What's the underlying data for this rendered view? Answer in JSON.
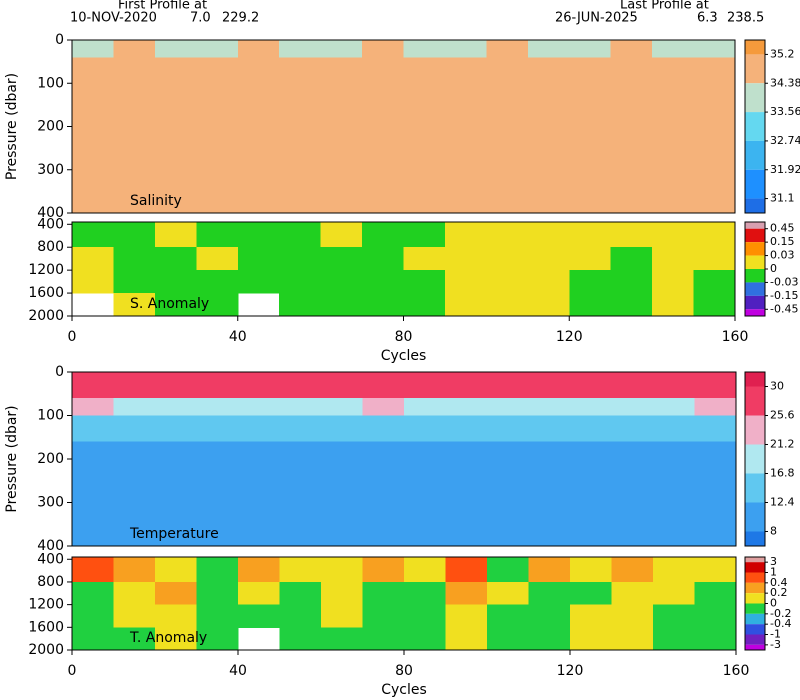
{
  "header": {
    "first_label": "First Profile at",
    "first_date": "10-NOV-2020",
    "first_lat": {
      "value": 7,
      "label": "7.0"
    },
    "first_lon": 229.2,
    "last_label": "Last Profile at",
    "last_date": "26-JUN-2025",
    "last_lat": 6.3,
    "last_lon": 238.5
  },
  "chart_data": [
    {
      "type": "heatmap",
      "label": "Salinity",
      "ylabel": "Pressure (dbar)",
      "xlim": [
        0,
        160
      ],
      "ylim": [
        0,
        400
      ],
      "y_inverted": true,
      "yticks": [
        0,
        100,
        200,
        300,
        400
      ],
      "x_edges": [
        0,
        10,
        20,
        30,
        40,
        50,
        60,
        70,
        80,
        90,
        100,
        110,
        120,
        130,
        140,
        150,
        160
      ],
      "y_edges": [
        0,
        40,
        80,
        150,
        250,
        400
      ],
      "z": [
        [
          33.9,
          34.5,
          34.0,
          33.9,
          34.6,
          34.0,
          33.9,
          34.5,
          33.9,
          34.0,
          34.6,
          33.9,
          34.0,
          34.5,
          33.9,
          34.0
        ],
        [
          34.5,
          34.6,
          34.5,
          34.6,
          34.5,
          34.6,
          34.6,
          34.5,
          34.6,
          34.5,
          34.6,
          34.5,
          34.6,
          34.5,
          34.6,
          34.5
        ],
        [
          34.75,
          34.76,
          34.74,
          34.75,
          34.76,
          34.75,
          34.74,
          34.75,
          34.76,
          34.75,
          34.74,
          34.75,
          34.76,
          34.75,
          34.74,
          34.75
        ],
        [
          34.72,
          34.72,
          34.71,
          34.72,
          34.73,
          34.72,
          34.71,
          34.72,
          34.72,
          34.73,
          34.72,
          34.71,
          34.72,
          34.72,
          34.71,
          34.72
        ],
        [
          34.7,
          34.7,
          34.69,
          34.7,
          34.7,
          34.71,
          34.7,
          34.7,
          34.69,
          34.7,
          34.7,
          34.7,
          34.71,
          34.7,
          34.69,
          34.7
        ]
      ],
      "colorbar": {
        "ticks": [
          35.2,
          34.38,
          33.56,
          32.74,
          31.92,
          31.1
        ],
        "colors": [
          "#f59a3c",
          "#f5b27a",
          "#bfe0cc",
          "#64d8f0",
          "#3cb4f0",
          "#1e90ff",
          "#1e6ee6"
        ]
      }
    },
    {
      "type": "heatmap",
      "label": "S. Anomaly",
      "xlabel": "Cycles",
      "xlim": [
        0,
        160
      ],
      "xticks": [
        0,
        40,
        80,
        120,
        160
      ],
      "ylim": [
        360,
        2000
      ],
      "y_inverted": true,
      "yticks": [
        400,
        800,
        1200,
        1600,
        2000
      ],
      "x_edges": [
        0,
        10,
        20,
        30,
        40,
        50,
        60,
        70,
        80,
        90,
        100,
        110,
        120,
        130,
        140,
        150,
        160
      ],
      "y_edges": [
        360,
        800,
        1200,
        1600,
        2000
      ],
      "z": [
        [
          -0.01,
          -0.01,
          0.01,
          -0.01,
          -0.01,
          -0.01,
          0.01,
          -0.01,
          -0.01,
          0.02,
          0.02,
          0.02,
          0.01,
          0.02,
          0.01,
          0.01
        ],
        [
          0.01,
          -0.01,
          -0.01,
          0.01,
          -0.01,
          -0.01,
          -0.01,
          -0.01,
          0.01,
          0.01,
          0.01,
          0.01,
          0.01,
          -0.01,
          0.01,
          0.01
        ],
        [
          0.01,
          -0.01,
          -0.01,
          -0.01,
          -0.01,
          -0.01,
          -0.01,
          -0.01,
          -0.01,
          0.01,
          0.01,
          0.01,
          -0.01,
          -0.01,
          0.01,
          -0.01
        ],
        [
          null,
          0.01,
          -0.01,
          -0.01,
          null,
          -0.01,
          -0.01,
          -0.01,
          -0.01,
          0.01,
          0.01,
          0.01,
          -0.01,
          -0.01,
          0.01,
          -0.01
        ]
      ],
      "colorbar": {
        "ticks": [
          0.45,
          0.15,
          0.03,
          0,
          -0.03,
          -0.15,
          -0.45
        ],
        "colors": [
          "#d8a0b0",
          "#e01010",
          "#ff9000",
          "#f0e020",
          "#20d020",
          "#3070e0",
          "#5020c0",
          "#c000e0"
        ]
      }
    },
    {
      "type": "heatmap",
      "label": "Temperature",
      "ylabel": "Pressure (dbar)",
      "xlim": [
        0,
        160
      ],
      "ylim": [
        0,
        400
      ],
      "y_inverted": true,
      "yticks": [
        0,
        100,
        200,
        300,
        400
      ],
      "x_edges": [
        0,
        10,
        20,
        30,
        40,
        50,
        60,
        70,
        80,
        90,
        100,
        110,
        120,
        130,
        140,
        150,
        160
      ],
      "y_edges": [
        0,
        60,
        100,
        160,
        280,
        400
      ],
      "z": [
        [
          27,
          27,
          27,
          27,
          27,
          27,
          27,
          27,
          27,
          27,
          27,
          27,
          27,
          27,
          27,
          27
        ],
        [
          24,
          20,
          21,
          19,
          20,
          18,
          20,
          22,
          21,
          19,
          20,
          21,
          20,
          19,
          20,
          22
        ],
        [
          14,
          13,
          14,
          13.5,
          13,
          14,
          14,
          13,
          13.5,
          14,
          13,
          14,
          13,
          13.5,
          14,
          13.5
        ],
        [
          11.5,
          11.8,
          11.5,
          11.3,
          11.6,
          11.5,
          11.4,
          11.6,
          11.5,
          11.3,
          11.5,
          11.6,
          11.4,
          11.5,
          11.5,
          11.6
        ],
        [
          10,
          10,
          10,
          10,
          10,
          10,
          10,
          10,
          10,
          10,
          10,
          10,
          10,
          10,
          10,
          10
        ]
      ],
      "colorbar": {
        "ticks": [
          30,
          25.6,
          21.2,
          16.8,
          12.4,
          8
        ],
        "colors": [
          "#e02050",
          "#f03c64",
          "#f0b0c8",
          "#b0e8f0",
          "#60c8f0",
          "#3ca0f0",
          "#1e78e6"
        ]
      }
    },
    {
      "type": "heatmap",
      "label": "T. Anomaly",
      "xlabel": "Cycles",
      "xlim": [
        0,
        160
      ],
      "xticks": [
        0,
        40,
        80,
        120,
        160
      ],
      "ylim": [
        360,
        2000
      ],
      "y_inverted": true,
      "yticks": [
        400,
        800,
        1200,
        1600,
        2000
      ],
      "x_edges": [
        0,
        10,
        20,
        30,
        40,
        50,
        60,
        70,
        80,
        90,
        100,
        110,
        120,
        130,
        140,
        150,
        160
      ],
      "y_edges": [
        360,
        800,
        1200,
        1600,
        2000
      ],
      "z": [
        [
          0.5,
          0.3,
          0.1,
          -0.1,
          0.3,
          0.1,
          0.1,
          0.2,
          0.1,
          0.5,
          -0.1,
          0.3,
          0.1,
          0.3,
          0.1,
          0.1
        ],
        [
          -0.1,
          0.1,
          0.3,
          -0.1,
          0.1,
          -0.1,
          0.1,
          -0.1,
          -0.1,
          0.3,
          0.1,
          -0.1,
          -0.1,
          0.1,
          0.1,
          -0.1
        ],
        [
          -0.1,
          0.1,
          0.1,
          -0.1,
          -0.1,
          -0.1,
          0.1,
          -0.1,
          -0.1,
          0.1,
          -0.1,
          -0.1,
          0.1,
          0.1,
          -0.1,
          -0.1
        ],
        [
          -0.1,
          -0.1,
          0.1,
          -0.1,
          null,
          -0.1,
          -0.1,
          -0.1,
          -0.1,
          0.1,
          -0.1,
          -0.1,
          0.1,
          0.1,
          -0.1,
          -0.1
        ]
      ],
      "colorbar": {
        "ticks": [
          3,
          1,
          0.4,
          0.2,
          0,
          -0.2,
          -0.4,
          -1,
          -3
        ],
        "colors": [
          "#e0a0a0",
          "#d00000",
          "#ff5010",
          "#f8a020",
          "#f0e020",
          "#20d040",
          "#30b0e0",
          "#3050e0",
          "#7020c0",
          "#c000e0"
        ]
      }
    }
  ]
}
